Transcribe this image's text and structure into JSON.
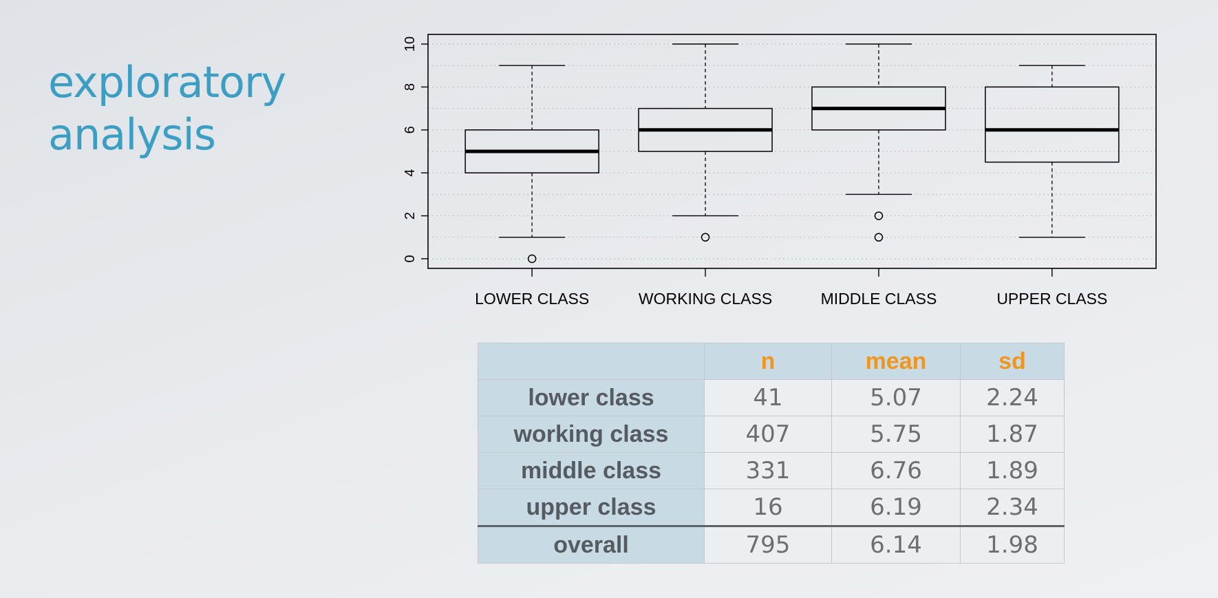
{
  "slide": {
    "title_lines": [
      "exploratory",
      "analysis"
    ]
  },
  "chart_data": {
    "type": "boxplot",
    "categories": [
      "LOWER CLASS",
      "WORKING CLASS",
      "MIDDLE CLASS",
      "UPPER CLASS"
    ],
    "ylim": [
      0,
      10
    ],
    "yticks": [
      "0",
      "2",
      "4",
      "6",
      "8",
      "10"
    ],
    "grid": true,
    "boxes": [
      {
        "category": "LOWER CLASS",
        "whisker_low": 1,
        "q1": 4,
        "median": 5,
        "q3": 6,
        "whisker_high": 9,
        "outliers": [
          0
        ]
      },
      {
        "category": "WORKING CLASS",
        "whisker_low": 2,
        "q1": 5,
        "median": 6,
        "q3": 7,
        "whisker_high": 10,
        "outliers": [
          1
        ]
      },
      {
        "category": "MIDDLE CLASS",
        "whisker_low": 3,
        "q1": 6,
        "median": 7,
        "q3": 8,
        "whisker_high": 10,
        "outliers": [
          2,
          1
        ]
      },
      {
        "category": "UPPER CLASS",
        "whisker_low": 1,
        "q1": 4.5,
        "median": 6,
        "q3": 8,
        "whisker_high": 9,
        "outliers": []
      }
    ]
  },
  "table": {
    "headers": [
      "n",
      "mean",
      "sd"
    ],
    "rows": [
      {
        "label": "lower class",
        "n": "41",
        "mean": "5.07",
        "sd": "2.24"
      },
      {
        "label": "working class",
        "n": "407",
        "mean": "5.75",
        "sd": "1.87"
      },
      {
        "label": "middle class",
        "n": "331",
        "mean": "6.76",
        "sd": "1.89"
      },
      {
        "label": "upper class",
        "n": "16",
        "mean": "6.19",
        "sd": "2.34"
      },
      {
        "label": "overall",
        "n": "795",
        "mean": "6.14",
        "sd": "1.98"
      }
    ]
  }
}
